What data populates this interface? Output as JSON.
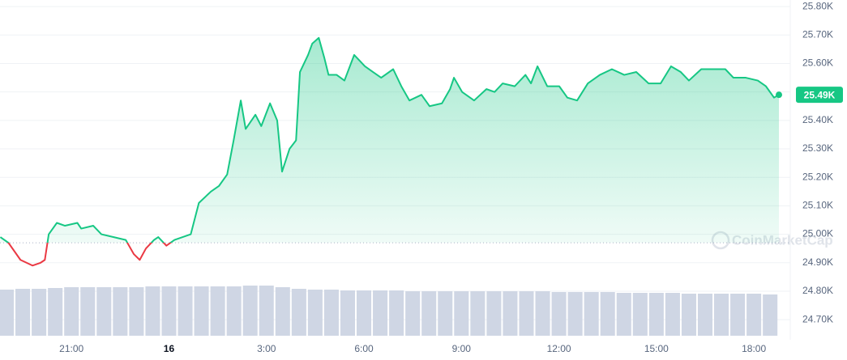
{
  "chart_data": {
    "type": "line",
    "watermark": "CoinMarketCap",
    "x": [
      18.81,
      19.06,
      19.43,
      19.8,
      20.05,
      20.18,
      20.3,
      20.55,
      20.8,
      21.18,
      21.3,
      21.67,
      21.92,
      22.3,
      22.67,
      22.92,
      23.1,
      23.29,
      23.54,
      23.67,
      23.92,
      24.17,
      24.42,
      24.67,
      24.92,
      25.29,
      25.54,
      25.79,
      25.99,
      26.21,
      26.36,
      26.66,
      26.84,
      27.11,
      27.33,
      27.48,
      27.71,
      27.91,
      28.03,
      28.28,
      28.41,
      28.61,
      28.78,
      28.91,
      29.16,
      29.4,
      29.7,
      30.03,
      30.28,
      30.53,
      30.9,
      31.15,
      31.4,
      31.77,
      32.02,
      32.4,
      32.65,
      32.77,
      33.02,
      33.39,
      33.77,
      34.02,
      34.27,
      34.64,
      34.97,
      35.14,
      35.34,
      35.64,
      36.01,
      36.26,
      36.56,
      36.89,
      37.26,
      37.63,
      38.01,
      38.38,
      38.76,
      39.13,
      39.45,
      39.75,
      40.0,
      40.38,
      40.75,
      41.12,
      41.37,
      41.75,
      42.12,
      42.37,
      42.62,
      42.77
    ],
    "values": [
      24.99,
      24.97,
      24.91,
      24.89,
      24.9,
      24.91,
      25.0,
      25.04,
      25.03,
      25.04,
      25.02,
      25.03,
      25.0,
      24.99,
      24.98,
      24.93,
      24.91,
      24.95,
      24.98,
      24.99,
      24.96,
      24.98,
      24.99,
      25.0,
      25.11,
      25.15,
      25.17,
      25.21,
      25.33,
      25.47,
      25.37,
      25.42,
      25.38,
      25.46,
      25.4,
      25.22,
      25.3,
      25.33,
      25.57,
      25.63,
      25.67,
      25.69,
      25.62,
      25.56,
      25.56,
      25.54,
      25.63,
      25.59,
      25.57,
      25.55,
      25.58,
      25.52,
      25.47,
      25.49,
      25.45,
      25.46,
      25.51,
      25.55,
      25.5,
      25.47,
      25.51,
      25.5,
      25.53,
      25.52,
      25.56,
      25.53,
      25.59,
      25.52,
      25.52,
      25.48,
      25.47,
      25.53,
      25.56,
      25.58,
      25.56,
      25.57,
      25.53,
      25.53,
      25.59,
      25.57,
      25.54,
      25.58,
      25.58,
      25.58,
      25.55,
      25.55,
      25.54,
      25.52,
      25.48,
      25.49
    ],
    "value_labels": [
      null,
      null,
      null,
      null,
      null,
      null,
      null,
      null,
      null,
      null,
      null,
      null,
      null,
      null,
      null,
      null,
      null,
      null,
      null,
      null,
      null,
      null,
      null,
      null,
      null,
      null,
      null,
      null,
      null,
      null,
      null,
      null,
      null,
      null,
      null,
      null,
      null,
      null,
      null,
      null,
      null,
      null,
      null,
      null,
      null,
      null,
      null,
      null,
      null,
      null,
      null,
      null,
      null,
      null,
      null,
      null,
      null,
      null,
      null,
      null,
      null,
      null,
      null,
      null,
      null,
      null,
      null,
      null,
      null,
      null,
      null,
      null,
      null,
      null,
      null,
      null,
      null,
      null,
      null,
      null,
      null,
      null,
      null,
      null,
      null,
      null,
      null,
      null,
      null,
      "25.49K"
    ],
    "baseline": 24.97,
    "up_color": "#16c784",
    "down_color": "#ea3943",
    "volume": {
      "color": "#cfd6e4",
      "x": [
        19.0,
        19.5,
        20.0,
        20.5,
        21.0,
        21.5,
        22.0,
        22.5,
        23.0,
        23.5,
        24.0,
        24.5,
        25.0,
        25.5,
        26.0,
        26.5,
        27.0,
        27.5,
        28.0,
        28.5,
        29.0,
        29.5,
        30.0,
        30.5,
        31.0,
        31.5,
        32.0,
        32.5,
        33.0,
        33.5,
        34.0,
        34.5,
        35.0,
        35.5,
        36.0,
        36.5,
        37.0,
        37.5,
        38.0,
        38.5,
        39.0,
        39.5,
        40.0,
        40.5,
        41.0,
        41.5,
        42.0,
        42.5
      ],
      "values": [
        57,
        58,
        58,
        59,
        60,
        60,
        60,
        60,
        60,
        61,
        61,
        61,
        61,
        61,
        61,
        62,
        62,
        60,
        58,
        57,
        57,
        56,
        56,
        56,
        56,
        55,
        55,
        55,
        55,
        55,
        55,
        55,
        55,
        55,
        54,
        54,
        54,
        54,
        53,
        53,
        53,
        53,
        52,
        52,
        52,
        52,
        52,
        51
      ]
    },
    "xlim": [
      18.8,
      42.77
    ],
    "ylim": [
      24.635,
      25.823
    ],
    "xticks": [
      {
        "value": 21,
        "label": "21:00"
      },
      {
        "value": 24,
        "label": "16"
      },
      {
        "value": 27,
        "label": "3:00"
      },
      {
        "value": 30,
        "label": "6:00"
      },
      {
        "value": 33,
        "label": "9:00"
      },
      {
        "value": 36,
        "label": "12:00"
      },
      {
        "value": 39,
        "label": "15:00"
      },
      {
        "value": 42,
        "label": "18:00"
      }
    ],
    "yticks": [
      {
        "value": 25.8,
        "label": "25.80K"
      },
      {
        "value": 25.7,
        "label": "25.70K"
      },
      {
        "value": 25.6,
        "label": "25.60K"
      },
      {
        "value": 25.5,
        "label": "25.50K"
      },
      {
        "value": 25.4,
        "label": "25.40K"
      },
      {
        "value": 25.3,
        "label": "25.30K"
      },
      {
        "value": 25.2,
        "label": "25.20K"
      },
      {
        "value": 25.1,
        "label": "25.10K"
      },
      {
        "value": 25.0,
        "label": "25.00K"
      },
      {
        "value": 24.9,
        "label": "24.90K"
      },
      {
        "value": 24.8,
        "label": "24.80K"
      },
      {
        "value": 24.7,
        "label": "24.70K"
      }
    ],
    "grid": true
  }
}
